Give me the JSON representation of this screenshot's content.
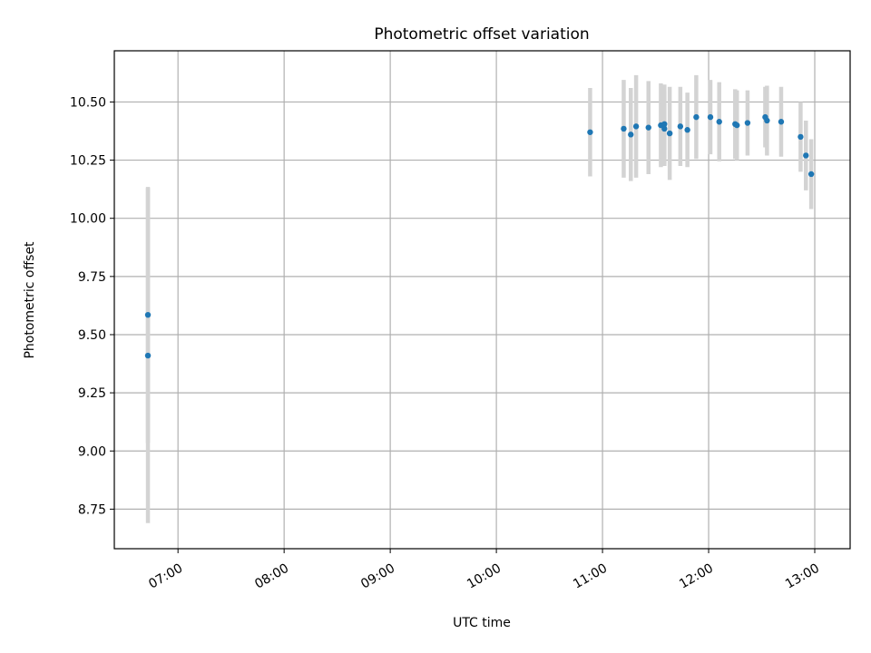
{
  "chart_data": {
    "type": "scatter",
    "title": "Photometric offset variation",
    "xlabel": "UTC time",
    "ylabel": "Photometric offset",
    "x_axis_type": "time",
    "xlim": [
      "06:24",
      "13:20"
    ],
    "ylim": [
      8.58,
      10.72
    ],
    "xticks": [
      "07:00",
      "08:00",
      "09:00",
      "10:00",
      "11:00",
      "12:00",
      "13:00"
    ],
    "yticks": [
      "8.75",
      "9.00",
      "9.25",
      "9.50",
      "9.75",
      "10.00",
      "10.25",
      "10.50"
    ],
    "grid": true,
    "legend": "none",
    "colors": {
      "points": "#1f77b4",
      "error_bars": "#d3d3d3",
      "grid": "#b0b0b0"
    },
    "points": [
      {
        "x": "06:43",
        "y": 9.585,
        "err": 0.55
      },
      {
        "x": "06:43",
        "y": 9.41,
        "err": 0.72
      },
      {
        "x": "10:53",
        "y": 10.37,
        "err": 0.19
      },
      {
        "x": "11:12",
        "y": 10.385,
        "err": 0.21
      },
      {
        "x": "11:16",
        "y": 10.36,
        "err": 0.2
      },
      {
        "x": "11:19",
        "y": 10.395,
        "err": 0.22
      },
      {
        "x": "11:26",
        "y": 10.39,
        "err": 0.2
      },
      {
        "x": "11:33",
        "y": 10.4,
        "err": 0.18
      },
      {
        "x": "11:35",
        "y": 10.405,
        "err": 0.17
      },
      {
        "x": "11:35",
        "y": 10.385,
        "err": 0.16
      },
      {
        "x": "11:38",
        "y": 10.365,
        "err": 0.2
      },
      {
        "x": "11:44",
        "y": 10.395,
        "err": 0.17
      },
      {
        "x": "11:48",
        "y": 10.38,
        "err": 0.16
      },
      {
        "x": "11:53",
        "y": 10.435,
        "err": 0.18
      },
      {
        "x": "12:01",
        "y": 10.435,
        "err": 0.16
      },
      {
        "x": "12:06",
        "y": 10.415,
        "err": 0.17
      },
      {
        "x": "12:15",
        "y": 10.405,
        "err": 0.15
      },
      {
        "x": "12:16",
        "y": 10.4,
        "err": 0.15
      },
      {
        "x": "12:22",
        "y": 10.41,
        "err": 0.14
      },
      {
        "x": "12:32",
        "y": 10.435,
        "err": 0.13
      },
      {
        "x": "12:33",
        "y": 10.42,
        "err": 0.15
      },
      {
        "x": "12:41",
        "y": 10.415,
        "err": 0.15
      },
      {
        "x": "12:52",
        "y": 10.35,
        "err": 0.15
      },
      {
        "x": "12:55",
        "y": 10.27,
        "err": 0.15
      },
      {
        "x": "12:58",
        "y": 10.19,
        "err": 0.15
      }
    ]
  }
}
